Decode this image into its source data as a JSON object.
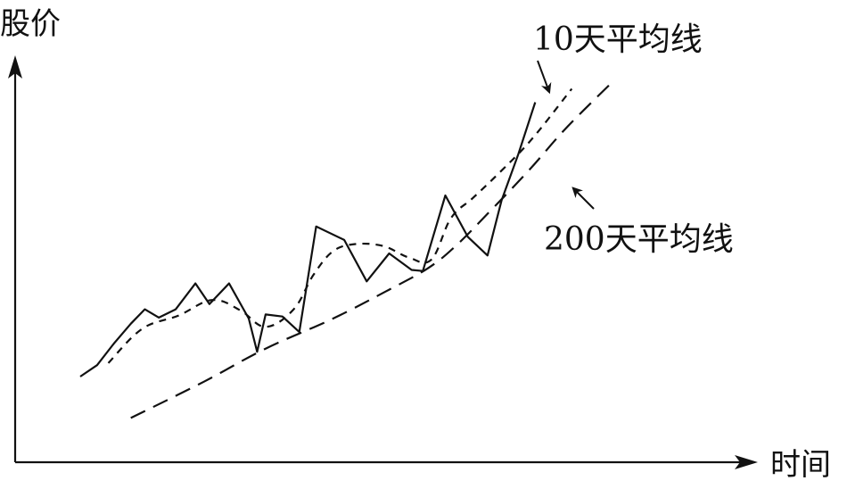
{
  "chart_data": {
    "type": "line",
    "title": "",
    "ylabel": "股价",
    "xlabel": "时间",
    "grid": false,
    "legend": "none",
    "ticks": "none",
    "line_color": "#111111",
    "annotations": [
      {
        "text": "10天平均线",
        "target": "ma10"
      },
      {
        "text": "200天平均线",
        "target": "ma200"
      }
    ],
    "series": [
      {
        "id": "price",
        "style": "solid",
        "points": [
          [
            0.0,
            0.0
          ],
          [
            3.0,
            1.1
          ],
          [
            6.0,
            3.2
          ],
          [
            9.0,
            5.1
          ],
          [
            11.5,
            6.5
          ],
          [
            14.0,
            5.7
          ],
          [
            17.0,
            6.5
          ],
          [
            20.5,
            9.0
          ],
          [
            23.0,
            7.0
          ],
          [
            26.5,
            9.0
          ],
          [
            30.0,
            5.6
          ],
          [
            31.5,
            2.4
          ],
          [
            33.0,
            6.0
          ],
          [
            36.0,
            5.8
          ],
          [
            39.0,
            4.3
          ],
          [
            42.0,
            14.5
          ],
          [
            47.0,
            13.2
          ],
          [
            51.0,
            9.2
          ],
          [
            55.0,
            11.9
          ],
          [
            59.0,
            10.3
          ],
          [
            61.0,
            10.2
          ],
          [
            65.0,
            17.5
          ],
          [
            69.0,
            13.5
          ],
          [
            72.5,
            11.7
          ],
          [
            75.0,
            17.0
          ],
          [
            78.0,
            21.5
          ],
          [
            81.0,
            26.5
          ]
        ]
      },
      {
        "id": "ma10",
        "style": "short-dash",
        "points": [
          [
            5.0,
            1.3
          ],
          [
            11.0,
            4.6
          ],
          [
            17.5,
            5.9
          ],
          [
            23.5,
            7.4
          ],
          [
            28.5,
            6.4
          ],
          [
            33.0,
            4.8
          ],
          [
            38.0,
            6.5
          ],
          [
            41.5,
            9.8
          ],
          [
            45.0,
            12.1
          ],
          [
            49.0,
            12.8
          ],
          [
            54.0,
            12.6
          ],
          [
            58.5,
            11.5
          ],
          [
            62.5,
            11.3
          ],
          [
            66.0,
            15.3
          ],
          [
            70.0,
            17.3
          ],
          [
            75.0,
            19.9
          ],
          [
            80.5,
            23.0
          ],
          [
            87.5,
            27.8
          ]
        ]
      },
      {
        "id": "ma200",
        "style": "long-dash",
        "points": [
          [
            9.0,
            -4.0
          ],
          [
            22.0,
            -0.5
          ],
          [
            33.0,
            2.7
          ],
          [
            45.0,
            5.6
          ],
          [
            55.0,
            8.4
          ],
          [
            62.0,
            10.5
          ],
          [
            67.0,
            12.7
          ],
          [
            73.0,
            16.0
          ],
          [
            80.0,
            20.0
          ],
          [
            86.5,
            24.0
          ],
          [
            95.0,
            28.6
          ]
        ]
      }
    ]
  }
}
